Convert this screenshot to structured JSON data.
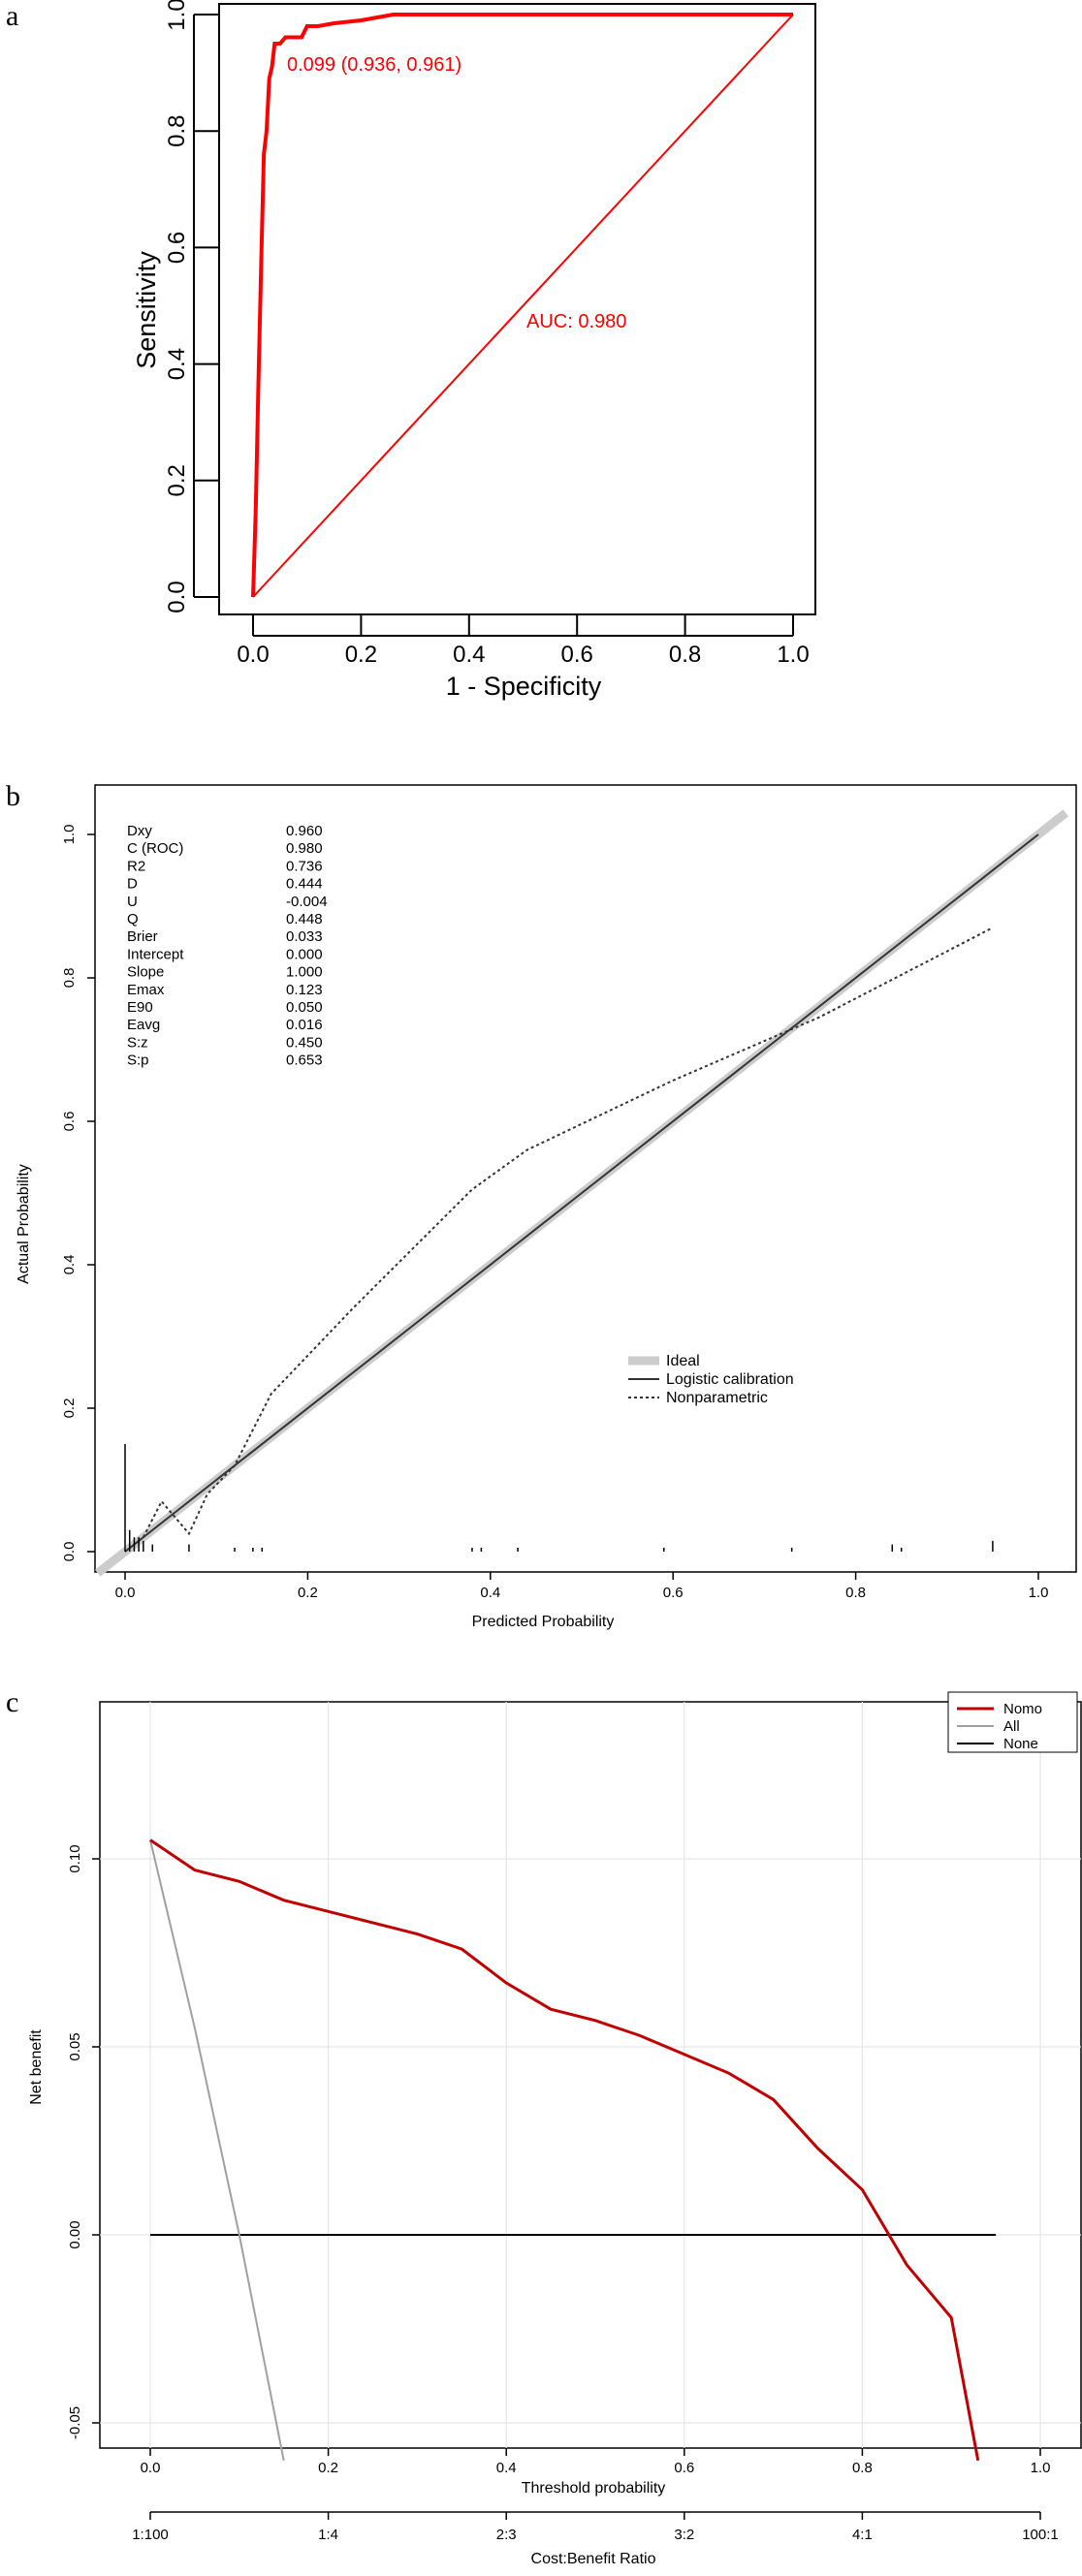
{
  "panels": {
    "a": {
      "letter": "a"
    },
    "b": {
      "letter": "b"
    },
    "c": {
      "letter": "c"
    }
  },
  "chart_data": [
    {
      "type": "line",
      "panel": "a",
      "xlabel": "1 - Specificity",
      "ylabel": "Sensitivity",
      "xlim": [
        0,
        1
      ],
      "ylim": [
        0,
        1
      ],
      "xticks": [
        "0.0",
        "0.2",
        "0.4",
        "0.6",
        "0.8",
        "1.0"
      ],
      "yticks": [
        "0.0",
        "0.2",
        "0.4",
        "0.6",
        "0.8",
        "1.0"
      ],
      "series": [
        {
          "values_x": [
            0.0,
            0.005,
            0.01,
            0.015,
            0.02,
            0.025,
            0.03,
            0.035,
            0.04,
            0.05,
            0.06,
            0.064,
            0.09,
            0.1,
            0.12,
            0.15,
            0.2,
            0.26,
            1.0
          ],
          "values_y": [
            0.0,
            0.15,
            0.37,
            0.57,
            0.76,
            0.8,
            0.89,
            0.91,
            0.95,
            0.95,
            0.961,
            0.961,
            0.961,
            0.98,
            0.98,
            0.985,
            0.99,
            1.0,
            1.0
          ]
        }
      ],
      "reference_line": {
        "x": [
          0,
          1
        ],
        "y": [
          0,
          1
        ]
      },
      "annotations": {
        "threshold": "0.099 (0.936, 0.961)",
        "auc": "AUC: 0.980"
      },
      "colors": {
        "roc": "#ff0000",
        "frame": "#000000"
      }
    },
    {
      "type": "line",
      "panel": "b",
      "xlabel": "Predicted Probability",
      "ylabel": "Actual Probability",
      "xlim": [
        0,
        1
      ],
      "ylim": [
        0,
        1
      ],
      "xticks": [
        "0.0",
        "0.2",
        "0.4",
        "0.6",
        "0.8",
        "1.0"
      ],
      "yticks": [
        "0.0",
        "0.2",
        "0.4",
        "0.6",
        "0.8",
        "1.0"
      ],
      "stats": [
        {
          "label": "Dxy",
          "value": "0.960"
        },
        {
          "label": "C (ROC)",
          "value": "0.980"
        },
        {
          "label": "R2",
          "value": "0.736"
        },
        {
          "label": "D",
          "value": "0.444"
        },
        {
          "label": "U",
          "value": "-0.004"
        },
        {
          "label": "Q",
          "value": "0.448"
        },
        {
          "label": "Brier",
          "value": "0.033"
        },
        {
          "label": "Intercept",
          "value": "0.000"
        },
        {
          "label": "Slope",
          "value": "1.000"
        },
        {
          "label": "Emax",
          "value": "0.123"
        },
        {
          "label": "E90",
          "value": "0.050"
        },
        {
          "label": "Eavg",
          "value": "0.016"
        },
        {
          "label": "S:z",
          "value": "0.450"
        },
        {
          "label": "S:p",
          "value": "0.653"
        }
      ],
      "series": [
        {
          "name": "Ideal",
          "x": [
            -0.03,
            1.03
          ],
          "y": [
            -0.03,
            1.03
          ]
        },
        {
          "name": "Logistic calibration",
          "x": [
            0.0,
            0.1,
            0.3,
            0.5,
            0.7,
            0.9,
            1.0
          ],
          "y": [
            0.0,
            0.1,
            0.3,
            0.5,
            0.7,
            0.9,
            1.0
          ]
        },
        {
          "name": "Nonparametric",
          "x": [
            0.0,
            0.02,
            0.04,
            0.05,
            0.06,
            0.07,
            0.09,
            0.12,
            0.16,
            0.25,
            0.38,
            0.44,
            0.6,
            0.76,
            0.95
          ],
          "y": [
            0.0,
            0.02,
            0.07,
            0.055,
            0.04,
            0.025,
            0.08,
            0.12,
            0.22,
            0.34,
            0.505,
            0.56,
            0.657,
            0.745,
            0.87
          ]
        }
      ],
      "rug_x": [
        0.0,
        0.005,
        0.01,
        0.015,
        0.02,
        0.03,
        0.07,
        0.12,
        0.14,
        0.15,
        0.38,
        0.39,
        0.43,
        0.59,
        0.73,
        0.84,
        0.85,
        0.95
      ],
      "rug_h": [
        0.15,
        0.03,
        0.02,
        0.02,
        0.015,
        0.01,
        0.01,
        0.005,
        0.005,
        0.005,
        0.005,
        0.005,
        0.005,
        0.005,
        0.005,
        0.01,
        0.005,
        0.015
      ],
      "legend": {
        "position": "bottom-right",
        "entries": [
          "Ideal",
          "Logistic calibration",
          "Nonparametric"
        ]
      },
      "colors": {
        "ideal": "#cccccc",
        "logistic": "#333333",
        "nonparametric": "#333333"
      }
    },
    {
      "type": "line",
      "panel": "c",
      "xlabel": "Threshold probability",
      "ylabel": "Net benefit",
      "xlabel2": "Cost:Benefit Ratio",
      "xlim": [
        0,
        1
      ],
      "ylim": [
        -0.05,
        0.1
      ],
      "xticks": [
        "0.0",
        "0.2",
        "0.4",
        "0.6",
        "0.8",
        "1.0"
      ],
      "yticks": [
        "-0.05",
        "0.00",
        "0.05",
        "0.10"
      ],
      "ratio_ticks": [
        "1:100",
        "1:4",
        "2:3",
        "3:2",
        "4:1",
        "100:1"
      ],
      "grid": true,
      "series": [
        {
          "name": "Nomo",
          "x": [
            0.0,
            0.05,
            0.1,
            0.15,
            0.2,
            0.25,
            0.3,
            0.35,
            0.4,
            0.45,
            0.5,
            0.55,
            0.6,
            0.65,
            0.7,
            0.75,
            0.8,
            0.85,
            0.9,
            0.93
          ],
          "y": [
            0.105,
            0.097,
            0.094,
            0.089,
            0.086,
            0.083,
            0.08,
            0.076,
            0.067,
            0.06,
            0.057,
            0.053,
            0.048,
            0.043,
            0.036,
            0.023,
            0.012,
            -0.008,
            -0.022,
            -0.06
          ]
        },
        {
          "name": "All",
          "x": [
            0.0,
            0.05,
            0.1,
            0.15
          ],
          "y": [
            0.105,
            0.055,
            0.0,
            -0.06
          ]
        },
        {
          "name": "None",
          "x": [
            0.0,
            0.95
          ],
          "y": [
            0.0,
            0.0
          ]
        }
      ],
      "legend": {
        "position": "top-right",
        "entries": [
          "Nomo",
          "All",
          "None"
        ]
      },
      "colors": {
        "nomo": "#c00000",
        "all": "#a0a0a0",
        "none": "#000000"
      }
    }
  ]
}
